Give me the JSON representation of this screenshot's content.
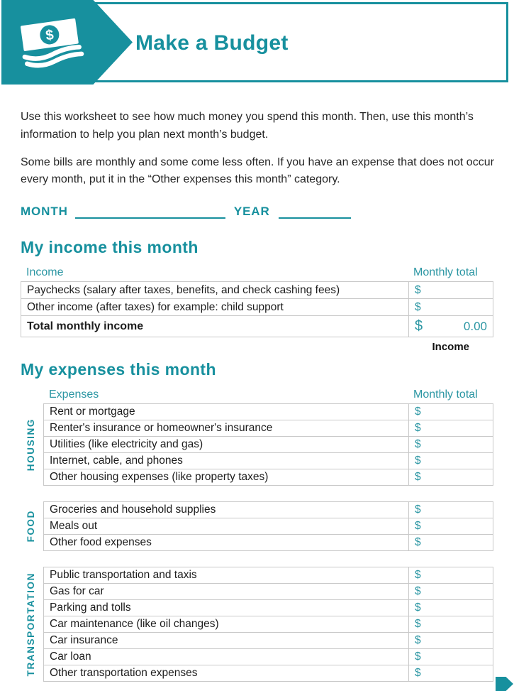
{
  "accent_color": "#17909e",
  "header": {
    "title": "Make a Budget",
    "icon": "money-bills-icon"
  },
  "intro": {
    "paragraph1": "Use this worksheet to see how much money you spend this month. Then, use this month’s information to help you plan next month’s budget.",
    "paragraph2": "Some bills are monthly and some come less often. If you have an expense that does not occur every month, put it in the “Other expenses this month” category."
  },
  "date_line": {
    "month_label": "MONTH",
    "month_value": "",
    "year_label": "YEAR",
    "year_value": ""
  },
  "income_section": {
    "heading": "My income this month",
    "col_item": "Income",
    "col_total": "Monthly total",
    "rows": [
      {
        "label": "Paychecks (salary after taxes, benefits, and check cashing fees)",
        "currency": "$",
        "value": ""
      },
      {
        "label": "Other income (after taxes) for example: child support",
        "currency": "$",
        "value": ""
      }
    ],
    "total_row": {
      "label": "Total monthly income",
      "currency": "$",
      "value": "0.00"
    },
    "caption": "Income"
  },
  "expenses_section": {
    "heading": "My expenses this month",
    "col_item": "Expenses",
    "col_total": "Monthly total",
    "groups": [
      {
        "category": "HOUSING",
        "rows": [
          {
            "label": "Rent or mortgage",
            "currency": "$",
            "value": ""
          },
          {
            "label": "Renter's insurance or homeowner's insurance",
            "currency": "$",
            "value": ""
          },
          {
            "label": "Utilities (like electricity and gas)",
            "currency": "$",
            "value": ""
          },
          {
            "label": "Internet, cable, and phones",
            "currency": "$",
            "value": ""
          },
          {
            "label": "Other housing expenses (like property taxes)",
            "currency": "$",
            "value": ""
          }
        ]
      },
      {
        "category": "FOOD",
        "rows": [
          {
            "label": "Groceries and household supplies",
            "currency": "$",
            "value": ""
          },
          {
            "label": "Meals out",
            "currency": "$",
            "value": ""
          },
          {
            "label": "Other food expenses",
            "currency": "$",
            "value": ""
          }
        ]
      },
      {
        "category": "TRANSPORTATION",
        "rows": [
          {
            "label": "Public transportation and taxis",
            "currency": "$",
            "value": ""
          },
          {
            "label": "Gas for car",
            "currency": "$",
            "value": ""
          },
          {
            "label": "Parking and tolls",
            "currency": "$",
            "value": ""
          },
          {
            "label": "Car maintenance (like oil changes)",
            "currency": "$",
            "value": ""
          },
          {
            "label": "Car insurance",
            "currency": "$",
            "value": ""
          },
          {
            "label": "Car loan",
            "currency": "$",
            "value": ""
          },
          {
            "label": "Other transportation expenses",
            "currency": "$",
            "value": ""
          }
        ]
      }
    ]
  },
  "footer": {
    "continuation_icon": "page-continues-arrow-icon"
  }
}
